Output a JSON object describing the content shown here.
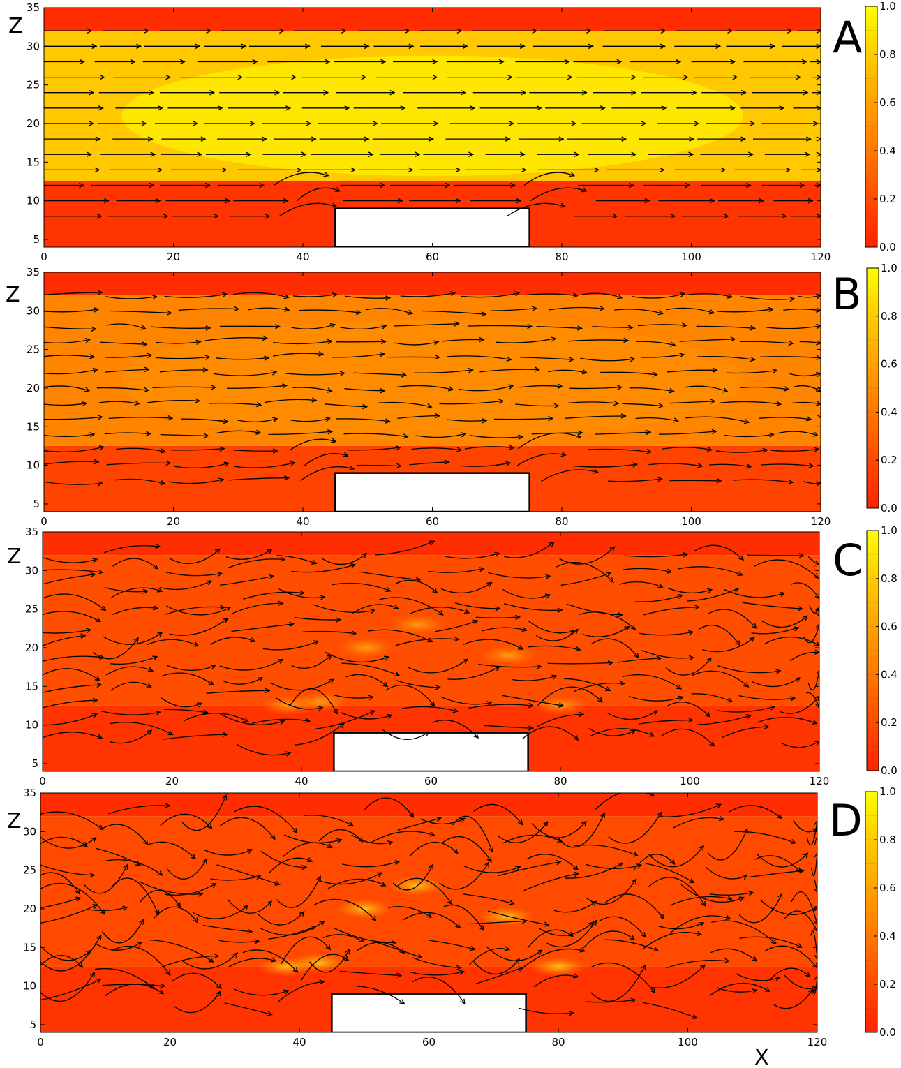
{
  "figure": {
    "xlabel": "X",
    "ylabel": "Z"
  },
  "colors": {
    "low": "#ff2a00",
    "mid": "#ff8a00",
    "high": "#ffee00",
    "obstacle": "#ffffff",
    "arrow": "#000000"
  },
  "chart_data": [
    {
      "type": "heatmap",
      "panel_label": "A",
      "xlabel": "",
      "ylabel": "Z",
      "xlim": [
        0,
        120
      ],
      "ylim": [
        4,
        35
      ],
      "x_ticks": [
        "0",
        "20",
        "40",
        "60",
        "80",
        "100",
        "120"
      ],
      "y_ticks": [
        "5",
        "10",
        "15",
        "20",
        "25",
        "30",
        "35"
      ],
      "colorbar_ticks": [
        "0.0",
        "0.2",
        "0.4",
        "0.6",
        "0.8",
        "1.0"
      ],
      "colorbar_range": [
        0,
        1
      ],
      "obstacle": {
        "x": [
          45,
          75
        ],
        "z": [
          4,
          9
        ]
      },
      "bands": [
        {
          "z": [
            4,
            12.5
          ],
          "value": 0.08
        },
        {
          "z": [
            12.5,
            32
          ],
          "value": 0.75
        },
        {
          "z": [
            32,
            35
          ],
          "value": 0.05
        }
      ],
      "arrow_rows": [
        8,
        10,
        12,
        14,
        16,
        18,
        20,
        22,
        24,
        26,
        28,
        30,
        32
      ],
      "flow": "laminar"
    },
    {
      "type": "heatmap",
      "panel_label": "B",
      "xlabel": "",
      "ylabel": "Z",
      "xlim": [
        0,
        120
      ],
      "ylim": [
        4,
        35
      ],
      "x_ticks": [
        "0",
        "20",
        "40",
        "60",
        "80",
        "100",
        "120"
      ],
      "y_ticks": [
        "5",
        "10",
        "15",
        "20",
        "25",
        "30",
        "35"
      ],
      "colorbar_ticks": [
        "0.0",
        "0.2",
        "0.4",
        "0.6",
        "0.8",
        "1.0"
      ],
      "colorbar_range": [
        0,
        1
      ],
      "obstacle": {
        "x": [
          45,
          75
        ],
        "z": [
          4,
          9
        ]
      },
      "bands": [
        {
          "z": [
            4,
            12.5
          ],
          "value": 0.15
        },
        {
          "z": [
            12.5,
            32
          ],
          "value": 0.45
        },
        {
          "z": [
            32,
            35
          ],
          "value": 0.05
        }
      ],
      "arrow_rows": [
        8,
        10,
        12,
        14,
        16,
        18,
        20,
        22,
        24,
        26,
        28,
        30,
        32
      ],
      "flow": "wavy"
    },
    {
      "type": "heatmap",
      "panel_label": "C",
      "xlabel": "",
      "ylabel": "Z",
      "xlim": [
        0,
        120
      ],
      "ylim": [
        4,
        35
      ],
      "x_ticks": [
        "0",
        "20",
        "40",
        "60",
        "80",
        "100",
        "120"
      ],
      "y_ticks": [
        "5",
        "10",
        "15",
        "20",
        "25",
        "30",
        "35"
      ],
      "colorbar_ticks": [
        "0.0",
        "0.2",
        "0.4",
        "0.6",
        "0.8",
        "1.0"
      ],
      "colorbar_range": [
        0,
        1
      ],
      "obstacle": {
        "x": [
          45,
          75
        ],
        "z": [
          4,
          9
        ]
      },
      "bands": [
        {
          "z": [
            4,
            12.5
          ],
          "value": 0.08
        },
        {
          "z": [
            12.5,
            32
          ],
          "value": 0.2
        },
        {
          "z": [
            32,
            35
          ],
          "value": 0.05
        }
      ],
      "arrow_rows": [
        8,
        10,
        12,
        14,
        16,
        18,
        20,
        22,
        24,
        26,
        28,
        30,
        32
      ],
      "flow": "turbulent"
    },
    {
      "type": "heatmap",
      "panel_label": "D",
      "xlabel": "X",
      "ylabel": "Z",
      "xlim": [
        0,
        120
      ],
      "ylim": [
        4,
        35
      ],
      "x_ticks": [
        "0",
        "20",
        "40",
        "60",
        "80",
        "100",
        "120"
      ],
      "y_ticks": [
        "5",
        "10",
        "15",
        "20",
        "25",
        "30",
        "35"
      ],
      "colorbar_ticks": [
        "0.0",
        "0.2",
        "0.4",
        "0.6",
        "0.8",
        "1.0"
      ],
      "colorbar_range": [
        0,
        1
      ],
      "obstacle": {
        "x": [
          45,
          75
        ],
        "z": [
          4,
          9
        ]
      },
      "bands": [
        {
          "z": [
            4,
            12.5
          ],
          "value": 0.08
        },
        {
          "z": [
            12.5,
            32
          ],
          "value": 0.18
        },
        {
          "z": [
            32,
            35
          ],
          "value": 0.05
        }
      ],
      "arrow_rows": [
        8,
        10,
        12,
        14,
        16,
        18,
        20,
        22,
        24,
        26,
        28,
        30,
        32
      ],
      "flow": "chaotic"
    }
  ]
}
